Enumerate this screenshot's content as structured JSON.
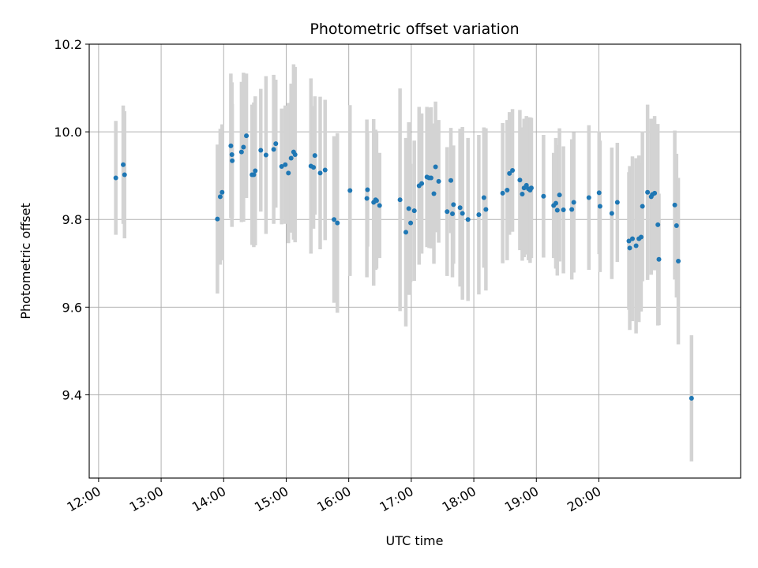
{
  "chart_data": {
    "type": "scatter",
    "title": "Photometric offset variation",
    "xlabel": "UTC time",
    "ylabel": "Photometric offset",
    "x_unit": "minutes",
    "xlim": [
      711,
      1336
    ],
    "ylim": [
      9.21,
      10.2
    ],
    "xticks": [
      720,
      780,
      840,
      900,
      960,
      1020,
      1080,
      1140,
      1200
    ],
    "xtick_labels": [
      "12:00",
      "13:00",
      "14:00",
      "15:00",
      "16:00",
      "17:00",
      "18:00",
      "19:00",
      "20:00"
    ],
    "yticks": [
      9.4,
      9.6,
      9.8,
      10.0,
      10.2
    ],
    "ytick_labels": [
      "9.4",
      "9.6",
      "9.8",
      "10.0",
      "10.2"
    ],
    "grid": true,
    "colors": {
      "point": "#1f77b4",
      "errorbar": "#d3d3d3",
      "grid": "#b0b0b0"
    },
    "series": [
      {
        "x": [
          736.5,
          743.6,
          744.9,
          834.0,
          836.7,
          838.5,
          846.9,
          847.9,
          848.2,
          857.1,
          859.0,
          861.8,
          867.2,
          868.9,
          870.3,
          875.6,
          880.6,
          888.0,
          890.0,
          895.6,
          899.1,
          902.1,
          904.7,
          907.1,
          908.5,
          923.7,
          926.2,
          927.5,
          932.6,
          937.3,
          945.9,
          949.1,
          961.2,
          977.4,
          978.0,
          983.9,
          985.8,
          986.7,
          989.6,
          1009.2,
          1014.8,
          1017.6,
          1019.4,
          1022.9,
          1027.5,
          1030.0,
          1035.0,
          1037.1,
          1039.0,
          1041.7,
          1043.3,
          1046.3,
          1054.4,
          1058.0,
          1059.5,
          1060.5,
          1066.8,
          1069.1,
          1074.4,
          1084.8,
          1089.7,
          1091.6,
          1107.7,
          1112.0,
          1114.2,
          1117.1,
          1124.2,
          1126.5,
          1128.2,
          1130.5,
          1132.4,
          1134.0,
          1135.2,
          1146.9,
          1156.6,
          1158.7,
          1160.1,
          1162.2,
          1166.0,
          1174.0,
          1175.9,
          1190.4,
          1200.2,
          1201.1,
          1212.4,
          1217.7,
          1228.8,
          1229.6,
          1232.2,
          1235.7,
          1238.4,
          1240.5,
          1241.8,
          1246.7,
          1250.2,
          1251.3,
          1253.5,
          1256.6,
          1257.6,
          1272.8,
          1274.5,
          1276.2,
          1288.9
        ],
        "y": [
          9.895,
          9.925,
          9.902,
          9.801,
          9.852,
          9.862,
          9.968,
          9.948,
          9.934,
          9.954,
          9.965,
          9.991,
          9.902,
          9.902,
          9.911,
          9.958,
          9.947,
          9.96,
          9.973,
          9.921,
          9.925,
          9.906,
          9.94,
          9.954,
          9.948,
          9.922,
          9.919,
          9.946,
          9.906,
          9.913,
          9.8,
          9.792,
          9.866,
          9.848,
          9.868,
          9.839,
          9.845,
          9.843,
          9.832,
          9.845,
          9.771,
          9.825,
          9.792,
          9.82,
          9.877,
          9.882,
          9.897,
          9.895,
          9.895,
          9.859,
          9.92,
          9.887,
          9.818,
          9.889,
          9.813,
          9.834,
          9.827,
          9.814,
          9.8,
          9.811,
          9.85,
          9.823,
          9.86,
          9.867,
          9.905,
          9.912,
          9.89,
          9.858,
          9.872,
          9.878,
          9.87,
          9.867,
          9.872,
          9.853,
          9.832,
          9.837,
          9.821,
          9.856,
          9.822,
          9.823,
          9.839,
          9.85,
          9.861,
          9.83,
          9.814,
          9.839,
          9.751,
          9.735,
          9.756,
          9.74,
          9.756,
          9.76,
          9.83,
          9.862,
          9.852,
          9.857,
          9.86,
          9.788,
          9.709,
          9.833,
          9.786,
          9.705,
          9.392
        ],
        "yerr": [
          0.13,
          0.135,
          0.145,
          0.17,
          0.155,
          0.155,
          0.165,
          0.165,
          0.13,
          0.16,
          0.17,
          0.142,
          0.16,
          0.165,
          0.17,
          0.14,
          0.18,
          0.17,
          0.146,
          0.132,
          0.135,
          0.16,
          0.17,
          0.2,
          0.2,
          0.2,
          0.14,
          0.135,
          0.174,
          0.16,
          0.19,
          0.205,
          0.195,
          0.18,
          0.13,
          0.19,
          0.16,
          0.155,
          0.12,
          0.254,
          0.215,
          0.197,
          0.135,
          0.16,
          0.18,
          0.16,
          0.16,
          0.16,
          0.161,
          0.16,
          0.149,
          0.14,
          0.147,
          0.12,
          0.145,
          0.135,
          0.18,
          0.197,
          0.186,
          0.182,
          0.16,
          0.185,
          0.16,
          0.16,
          0.14,
          0.14,
          0.16,
          0.152,
          0.158,
          0.158,
          0.163,
          0.166,
          0.16,
          0.14,
          0.12,
          0.149,
          0.149,
          0.152,
          0.145,
          0.16,
          0.16,
          0.165,
          0.14,
          0.15,
          0.15,
          0.136,
          0.157,
          0.187,
          0.188,
          0.2,
          0.19,
          0.17,
          0.171,
          0.2,
          0.178,
          0.14,
          0.176,
          0.23,
          0.15,
          0.17,
          0.164,
          0.19,
          0.144
        ]
      }
    ]
  }
}
